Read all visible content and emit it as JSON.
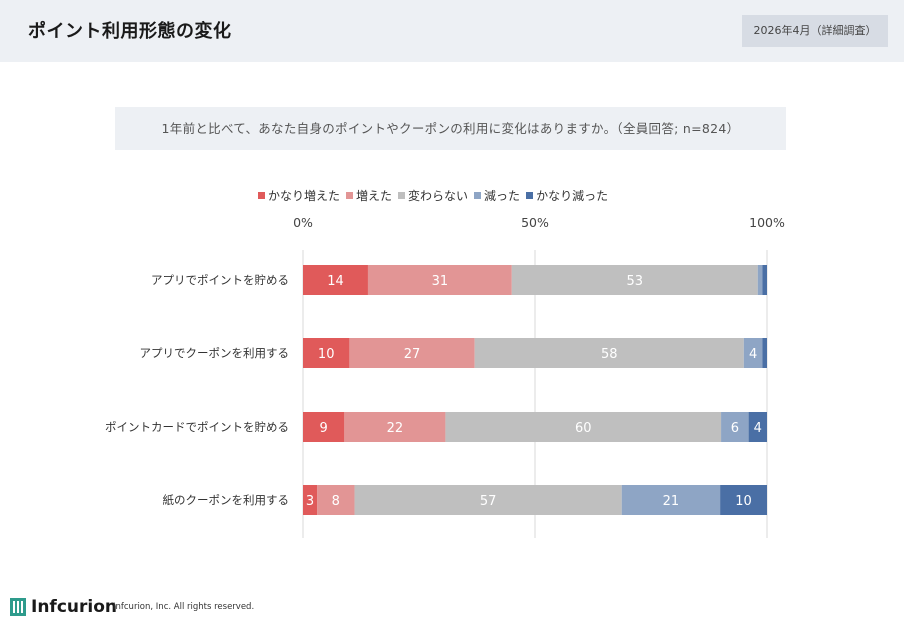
{
  "header": {
    "title": "ポイント利用形態の変化",
    "date_badge": "2026年4月（詳細調査）"
  },
  "question": "1年前と比べて、あなた自身のポイントやクーポンの利用に変化はありますか。（全員回答; n=824）",
  "colors": {
    "greatly_increased": "#e05a5a",
    "increased": "#e29595",
    "unchanged": "#bfbfbf",
    "decreased": "#8ea5c5",
    "greatly_decreased": "#4a6fa5"
  },
  "footer": {
    "logo_text": "Infcurion",
    "copyright": "Infcurion, Inc.  All rights reserved."
  },
  "chart_data": {
    "type": "bar",
    "orientation": "horizontal",
    "stacked": true,
    "categories": [
      "アプリでポイントを貯める",
      "アプリでクーポンを利用する",
      "ポイントカードでポイントを貯める",
      "紙のクーポンを利用する"
    ],
    "xlim": [
      0,
      100
    ],
    "x_ticks": [
      "0%",
      "50%",
      "100%"
    ],
    "legend_position": "top",
    "grid": true,
    "series": [
      {
        "name": "かなり増えた",
        "color": "#e05a5a",
        "values": [
          14,
          10,
          9,
          3
        ]
      },
      {
        "name": "増えた",
        "color": "#e29595",
        "values": [
          31,
          27,
          22,
          8
        ]
      },
      {
        "name": "変わらない",
        "color": "#bfbfbf",
        "values": [
          53,
          58,
          60,
          57
        ]
      },
      {
        "name": "減った",
        "color": "#8ea5c5",
        "values": [
          1,
          4,
          6,
          21
        ]
      },
      {
        "name": "かなり減った",
        "color": "#4a6fa5",
        "values": [
          1,
          1,
          4,
          10
        ]
      }
    ],
    "data_labels": [
      [
        "14",
        "31",
        "53",
        "",
        ""
      ],
      [
        "10",
        "27",
        "58",
        "4",
        ""
      ],
      [
        "9",
        "22",
        "60",
        "6",
        "4"
      ],
      [
        "3",
        "8",
        "57",
        "21",
        "10"
      ]
    ]
  }
}
